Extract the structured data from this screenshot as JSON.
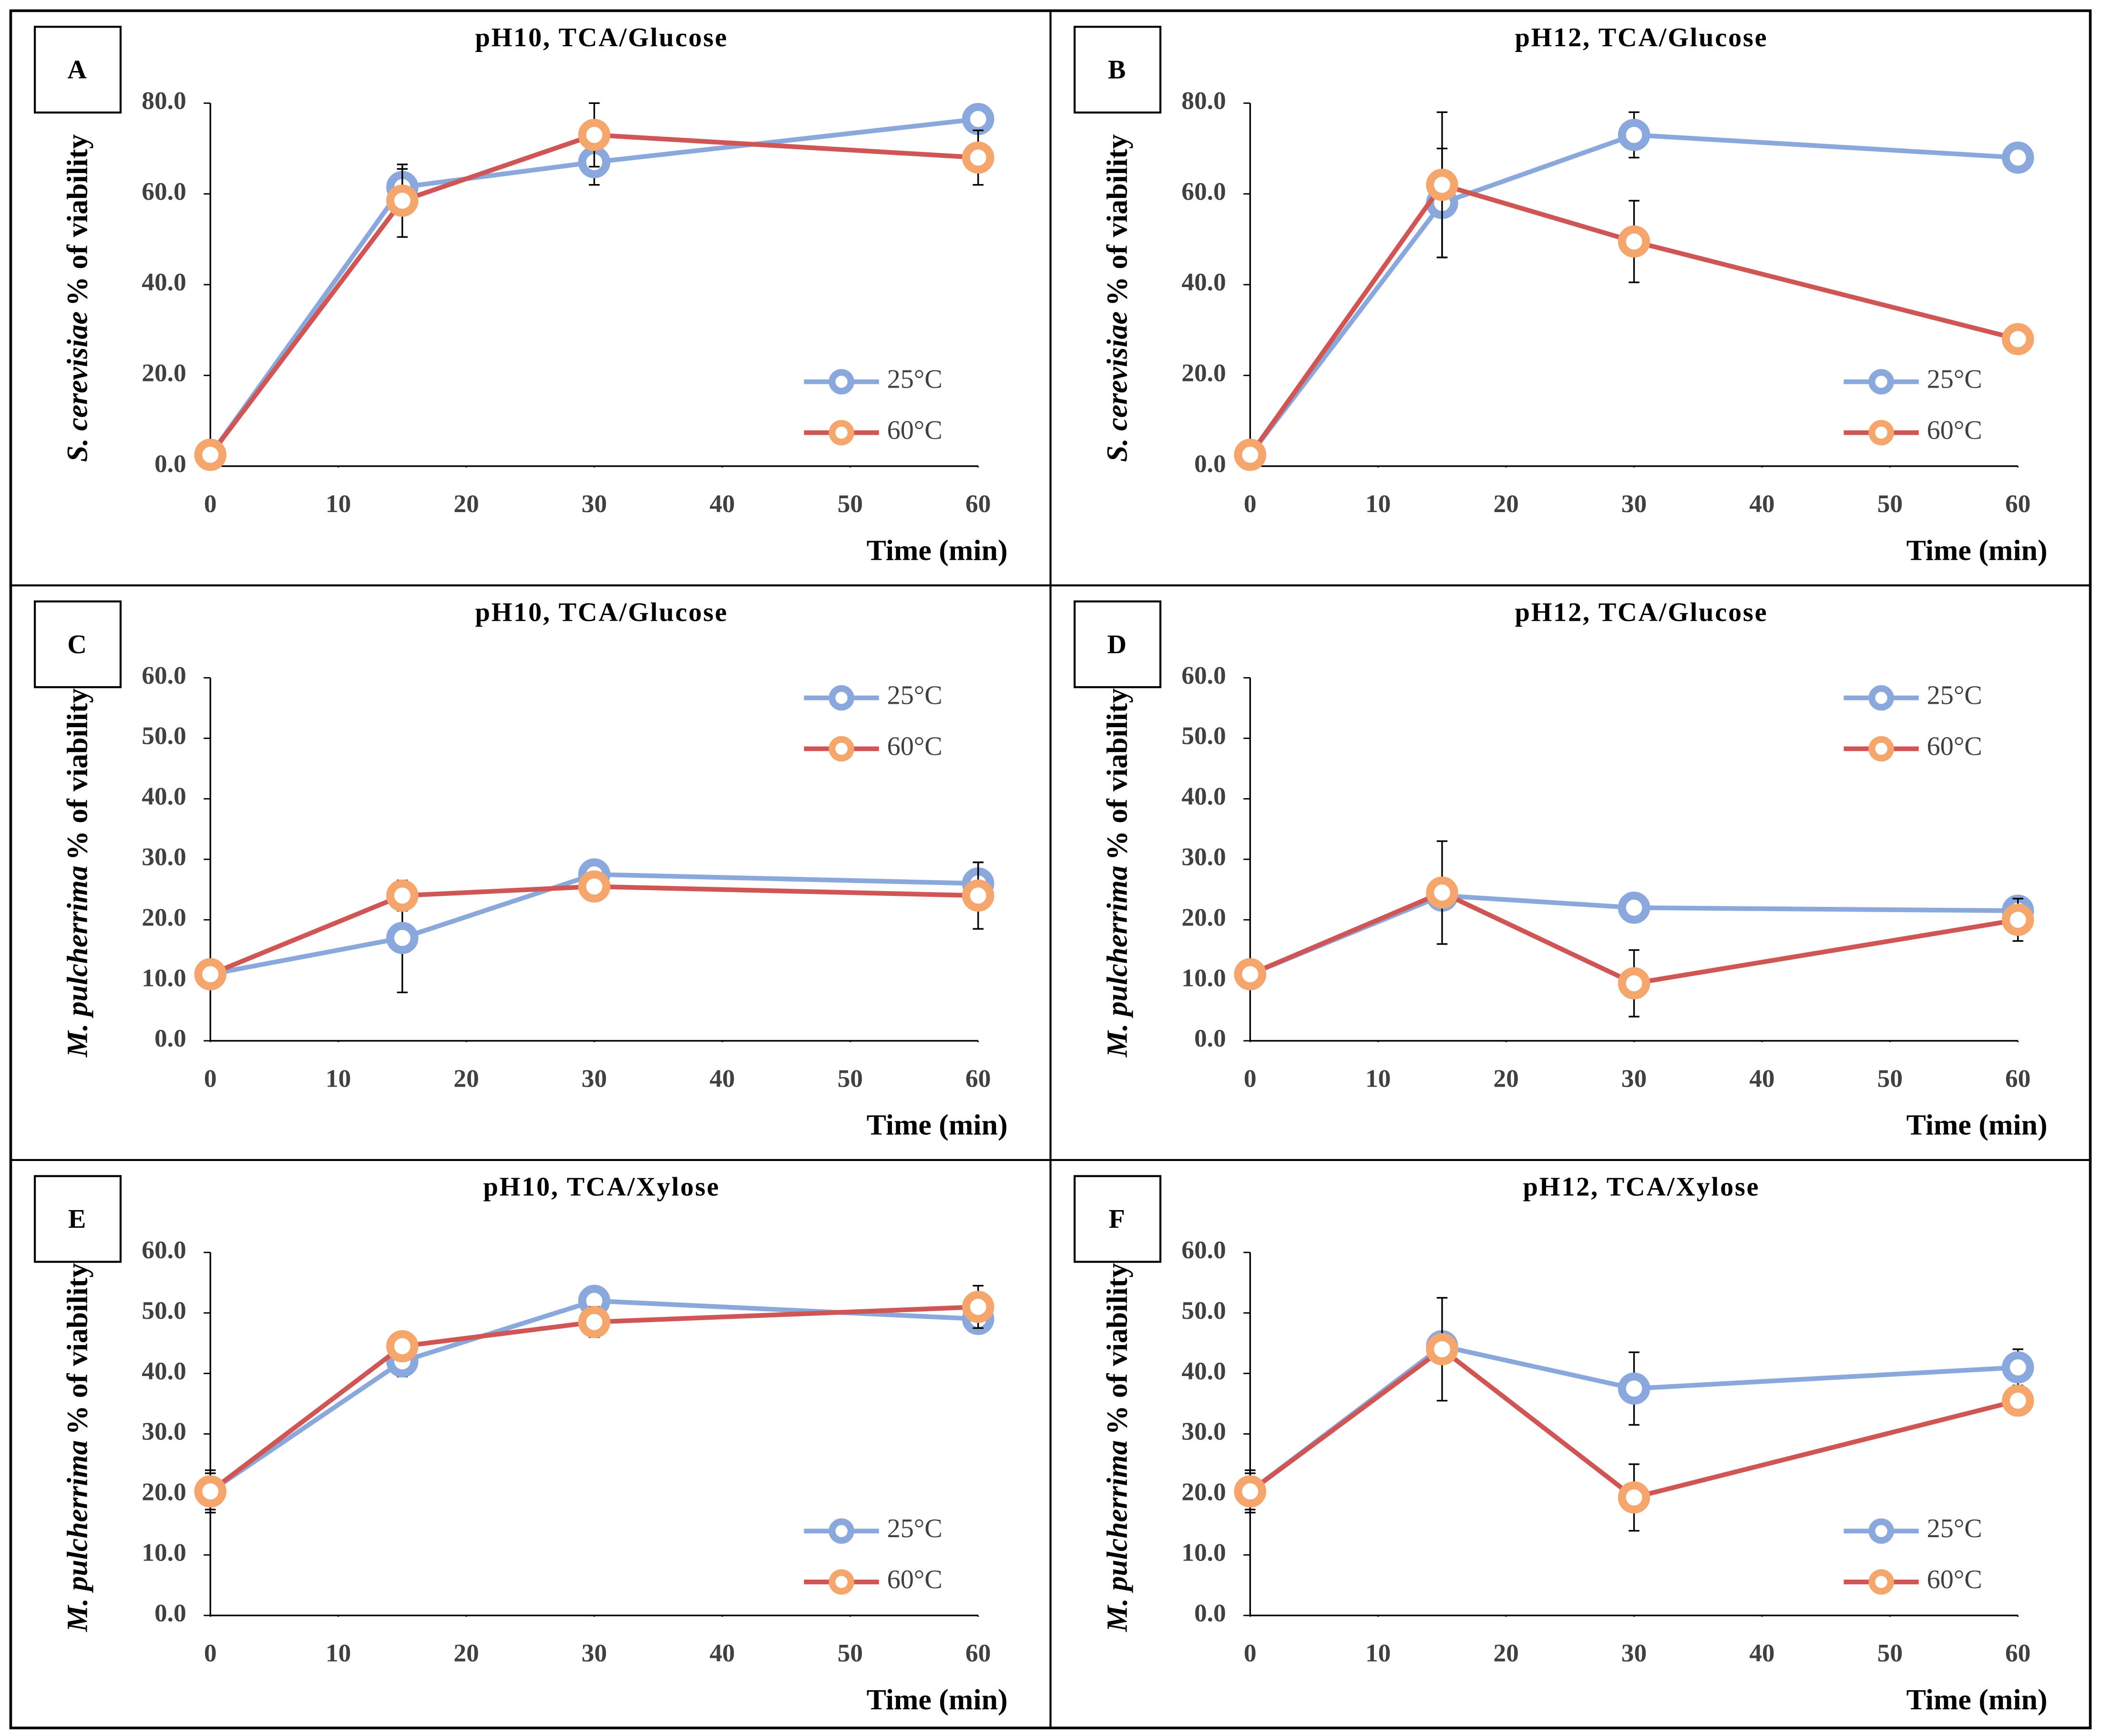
{
  "chart_data": [
    {
      "type": "line",
      "panel": "A",
      "title": "pH10, TCA/Glucose",
      "xlabel": "Time (min)",
      "ylabel_italic": "S. cerevisiae",
      "ylabel": "% of viability",
      "x": [
        0,
        15,
        30,
        60
      ],
      "xlim": [
        0,
        60
      ],
      "xticks": [
        0,
        10,
        20,
        30,
        40,
        50,
        60
      ],
      "ylim": [
        0,
        80
      ],
      "yticks": [
        {
          "value": 0,
          "label": "0.0"
        },
        {
          "value": 20,
          "label": "20.0"
        },
        {
          "value": 40,
          "label": "40.0"
        },
        {
          "value": 60,
          "label": "60.0"
        },
        {
          "value": 80,
          "label": "80.0"
        }
      ],
      "legend": "lower right",
      "series": [
        {
          "name": "25°C",
          "color": "#8aa8dc",
          "marker_color": "#8aa8dc",
          "values": [
            2.5,
            61.5,
            67,
            76.5
          ],
          "errors": [
            0.5,
            4,
            5,
            2
          ]
        },
        {
          "name": "60°C",
          "color": "#d05555",
          "marker_color": "#f4a66c",
          "values": [
            2.5,
            58.5,
            73,
            68
          ],
          "errors": [
            0.5,
            8,
            7,
            6
          ]
        }
      ]
    },
    {
      "type": "line",
      "panel": "B",
      "title": "pH12, TCA/Glucose",
      "xlabel": "Time (min)",
      "ylabel_italic": "S. cerevisiae",
      "ylabel": "% of viability",
      "x": [
        0,
        15,
        30,
        60
      ],
      "xlim": [
        0,
        60
      ],
      "xticks": [
        0,
        10,
        20,
        30,
        40,
        50,
        60
      ],
      "ylim": [
        0,
        80
      ],
      "yticks": [
        {
          "value": 0,
          "label": "0.0"
        },
        {
          "value": 20,
          "label": "20.0"
        },
        {
          "value": 40,
          "label": "40.0"
        },
        {
          "value": 60,
          "label": "60.0"
        },
        {
          "value": 80,
          "label": "80.0"
        }
      ],
      "legend": "lower right",
      "series": [
        {
          "name": "25°C",
          "color": "#8aa8dc",
          "marker_color": "#8aa8dc",
          "values": [
            2.5,
            58,
            73,
            68
          ],
          "errors": [
            0.5,
            12,
            5,
            3
          ]
        },
        {
          "name": "60°C",
          "color": "#d05555",
          "marker_color": "#f4a66c",
          "values": [
            2.5,
            62,
            49.5,
            28
          ],
          "errors": [
            0.5,
            16,
            9,
            3
          ]
        }
      ]
    },
    {
      "type": "line",
      "panel": "C",
      "title": "pH10, TCA/Glucose",
      "xlabel": "Time (min)",
      "ylabel_italic": "M. pulcherrima",
      "ylabel": "% of viability",
      "x": [
        0,
        15,
        30,
        60
      ],
      "xlim": [
        0,
        60
      ],
      "xticks": [
        0,
        10,
        20,
        30,
        40,
        50,
        60
      ],
      "ylim": [
        0,
        60
      ],
      "yticks": [
        {
          "value": 0,
          "label": "0.0"
        },
        {
          "value": 10,
          "label": "10.0"
        },
        {
          "value": 20,
          "label": "20.0"
        },
        {
          "value": 30,
          "label": "30.0"
        },
        {
          "value": 40,
          "label": "40.0"
        },
        {
          "value": 50,
          "label": "50.0"
        },
        {
          "value": 60,
          "label": "60.0"
        }
      ],
      "legend": "upper right",
      "series": [
        {
          "name": "25°C",
          "color": "#8aa8dc",
          "marker_color": "#8aa8dc",
          "values": [
            11,
            17,
            27.5,
            26
          ],
          "errors": [
            1,
            9,
            1,
            3.5
          ]
        },
        {
          "name": "60°C",
          "color": "#d05555",
          "marker_color": "#f4a66c",
          "values": [
            11,
            24,
            25.5,
            24
          ],
          "errors": [
            1,
            2.5,
            1,
            5.5
          ]
        }
      ]
    },
    {
      "type": "line",
      "panel": "D",
      "title": "pH12, TCA/Glucose",
      "xlabel": "Time (min)",
      "ylabel_italic": "M. pulcherrima",
      "ylabel": "% of viability",
      "x": [
        0,
        15,
        30,
        60
      ],
      "xlim": [
        0,
        60
      ],
      "xticks": [
        0,
        10,
        20,
        30,
        40,
        50,
        60
      ],
      "ylim": [
        0,
        60
      ],
      "yticks": [
        {
          "value": 0,
          "label": "0.0"
        },
        {
          "value": 10,
          "label": "10.0"
        },
        {
          "value": 20,
          "label": "20.0"
        },
        {
          "value": 30,
          "label": "30.0"
        },
        {
          "value": 40,
          "label": "40.0"
        },
        {
          "value": 50,
          "label": "50.0"
        },
        {
          "value": 60,
          "label": "60.0"
        }
      ],
      "legend": "upper right",
      "series": [
        {
          "name": "25°C",
          "color": "#8aa8dc",
          "marker_color": "#8aa8dc",
          "values": [
            11,
            24,
            22,
            21.5
          ],
          "errors": [
            1,
            1.5,
            1,
            1
          ]
        },
        {
          "name": "60°C",
          "color": "#d05555",
          "marker_color": "#f4a66c",
          "values": [
            11,
            24.5,
            9.5,
            20
          ],
          "errors": [
            1,
            8.5,
            5.5,
            3.5
          ]
        }
      ]
    },
    {
      "type": "line",
      "panel": "E",
      "title": "pH10, TCA/Xylose",
      "xlabel": "Time (min)",
      "ylabel_italic": "M. pulcherrima",
      "ylabel": "% of viability",
      "x": [
        0,
        15,
        30,
        60
      ],
      "xlim": [
        0,
        60
      ],
      "xticks": [
        0,
        10,
        20,
        30,
        40,
        50,
        60
      ],
      "ylim": [
        0,
        60
      ],
      "yticks": [
        {
          "value": 0,
          "label": "0.0"
        },
        {
          "value": 10,
          "label": "10.0"
        },
        {
          "value": 20,
          "label": "20.0"
        },
        {
          "value": 30,
          "label": "30.0"
        },
        {
          "value": 40,
          "label": "40.0"
        },
        {
          "value": 50,
          "label": "50.0"
        },
        {
          "value": 60,
          "label": "60.0"
        }
      ],
      "legend": "lower right",
      "series": [
        {
          "name": "25°C",
          "color": "#8aa8dc",
          "marker_color": "#8aa8dc",
          "values": [
            20.5,
            42,
            52,
            49
          ],
          "errors": [
            3,
            2.5,
            2,
            1
          ]
        },
        {
          "name": "60°C",
          "color": "#d05555",
          "marker_color": "#f4a66c",
          "values": [
            20.5,
            44.5,
            48.5,
            51
          ],
          "errors": [
            3.5,
            1,
            2.5,
            3.5
          ]
        }
      ]
    },
    {
      "type": "line",
      "panel": "F",
      "title": "pH12, TCA/Xylose",
      "xlabel": "Time (min)",
      "ylabel_italic": "M. pulcherrima",
      "ylabel": "% of viability",
      "x": [
        0,
        15,
        30,
        60
      ],
      "xlim": [
        0,
        60
      ],
      "xticks": [
        0,
        10,
        20,
        30,
        40,
        50,
        60
      ],
      "ylim": [
        0,
        60
      ],
      "yticks": [
        {
          "value": 0,
          "label": "0.0"
        },
        {
          "value": 10,
          "label": "10.0"
        },
        {
          "value": 20,
          "label": "20.0"
        },
        {
          "value": 30,
          "label": "30.0"
        },
        {
          "value": 40,
          "label": "40.0"
        },
        {
          "value": 50,
          "label": "50.0"
        },
        {
          "value": 60,
          "label": "60.0"
        }
      ],
      "legend": "lower right",
      "series": [
        {
          "name": "25°C",
          "color": "#8aa8dc",
          "marker_color": "#8aa8dc",
          "values": [
            20.5,
            44.5,
            37.5,
            41
          ],
          "errors": [
            3.5,
            1.5,
            6,
            3
          ]
        },
        {
          "name": "60°C",
          "color": "#d05555",
          "marker_color": "#f4a66c",
          "values": [
            20.5,
            44,
            19.5,
            35.5
          ],
          "errors": [
            3,
            8.5,
            5.5,
            2
          ]
        }
      ]
    }
  ]
}
